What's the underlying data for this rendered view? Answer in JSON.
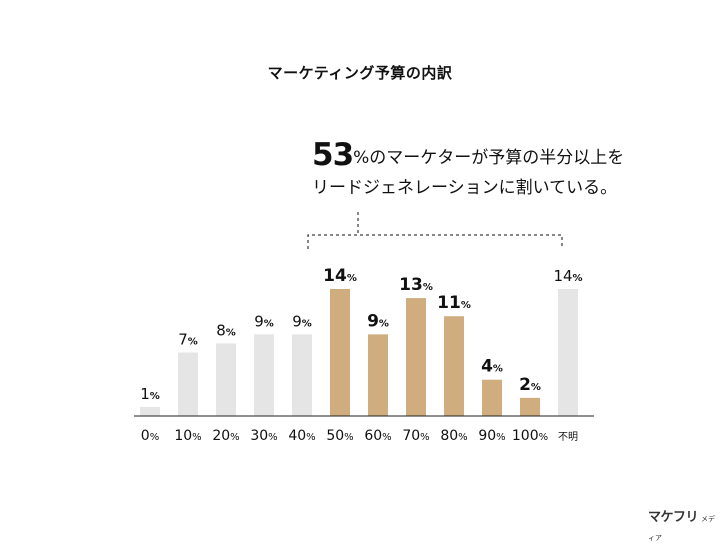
{
  "chart_data": {
    "type": "bar",
    "title": "マーケティング予算の内訳",
    "categories": [
      "0",
      "10",
      "20",
      "30",
      "40",
      "50",
      "60",
      "70",
      "80",
      "90",
      "100",
      "不明"
    ],
    "category_unit": "%",
    "values": [
      1,
      7,
      8,
      9,
      9,
      14,
      9,
      13,
      11,
      4,
      2,
      14
    ],
    "value_unit": "%",
    "highlighted": [
      false,
      false,
      false,
      false,
      false,
      true,
      true,
      true,
      true,
      true,
      true,
      false
    ],
    "annotation": {
      "big": "53",
      "line1_rest": "%のマーケターが予算の半分以上を",
      "line2": "リードジェネレーションに割いている。"
    },
    "ylim": [
      0,
      14
    ],
    "grid": false,
    "legend": "none"
  },
  "colors": {
    "highlight": "#D0AD7F",
    "normal": "#E5E5E5",
    "axis": "#222222"
  },
  "logo": {
    "mark": "マケフリ",
    "sub": "メディア"
  }
}
